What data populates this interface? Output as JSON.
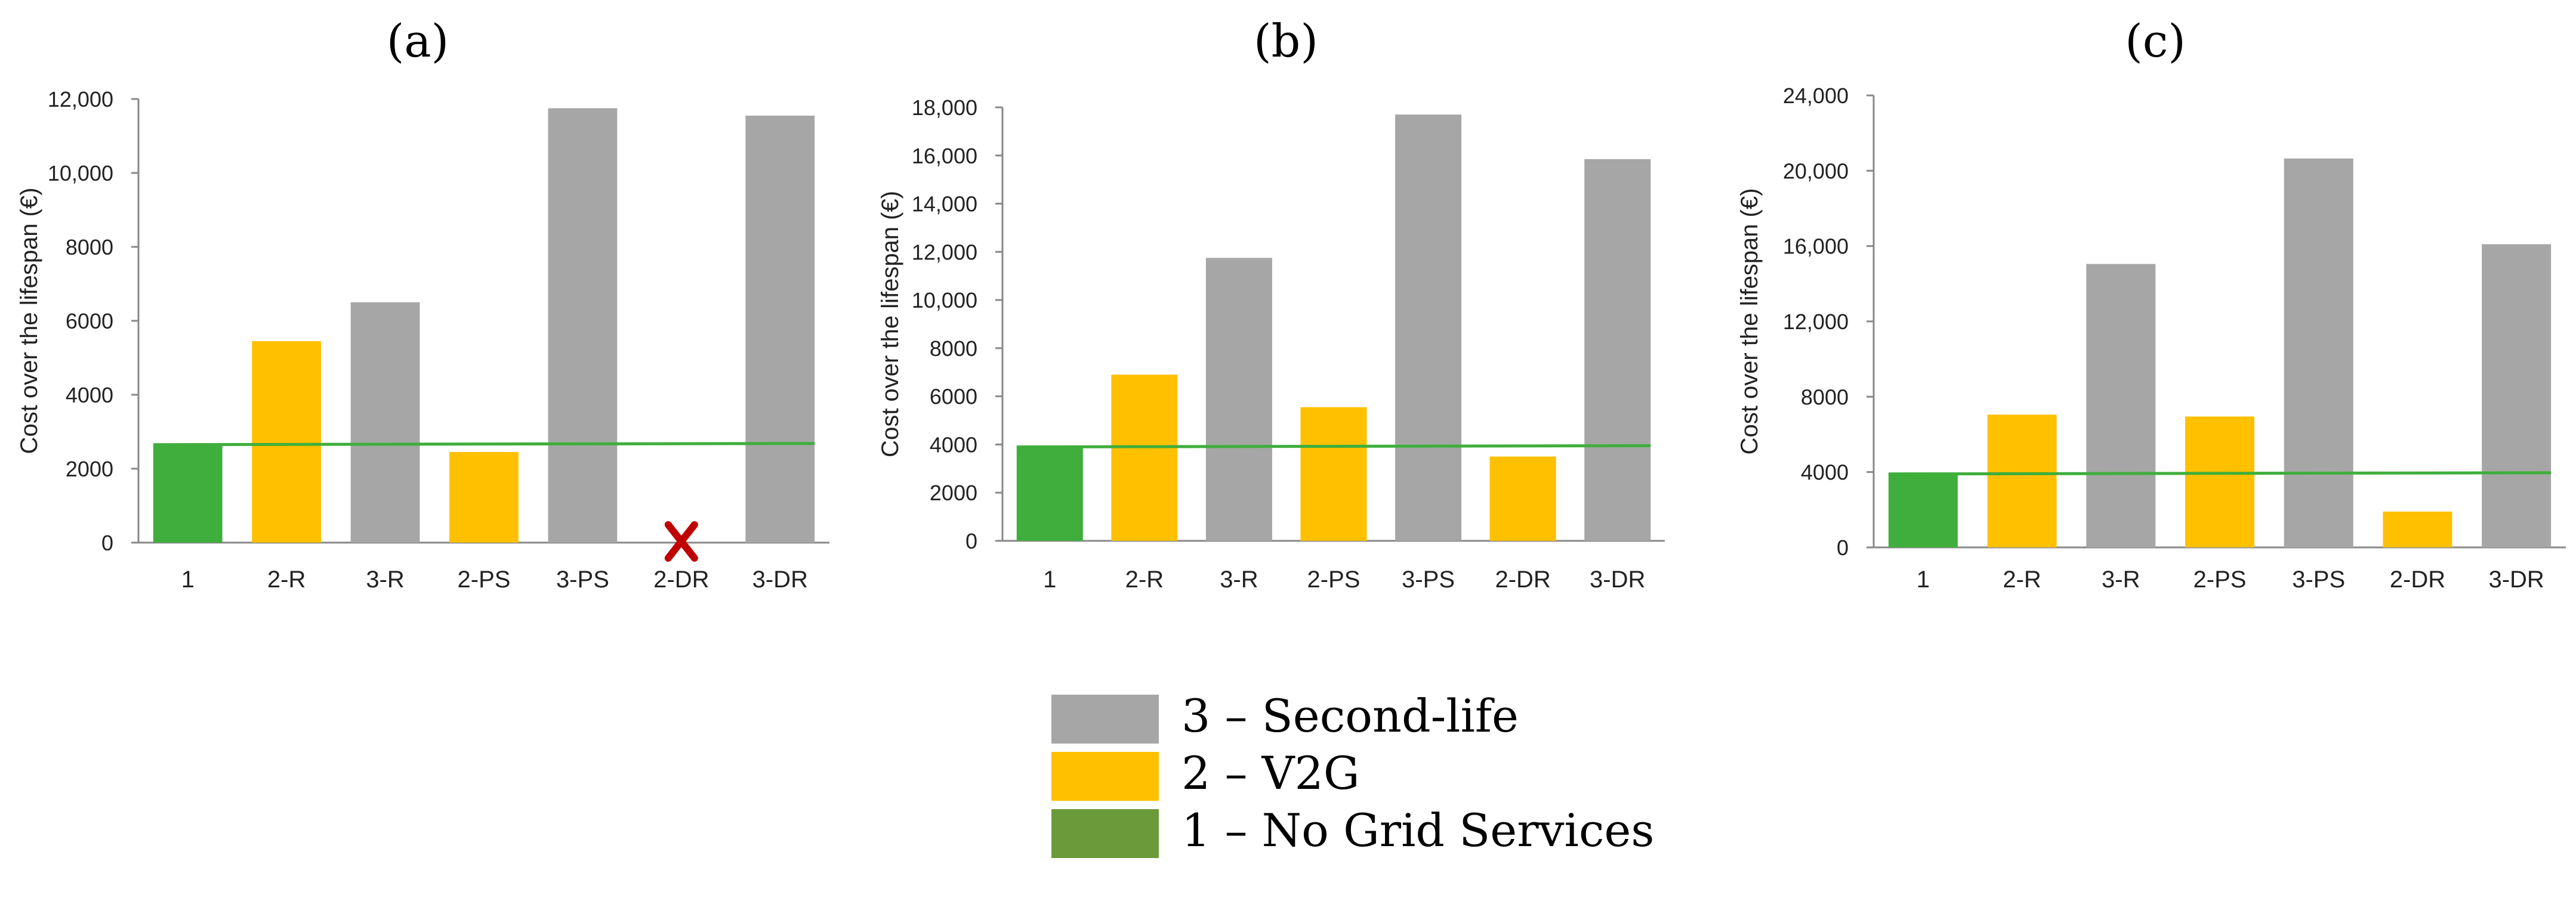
{
  "colors": {
    "second_life": "#a6a6a6",
    "v2g": "#ffc000",
    "no_grid": "#3fae3c",
    "baseline_line": "#3fae3c",
    "legend_no_grid": "#6a9a3a",
    "excluded_marker": "#c00000"
  },
  "legend": [
    {
      "label": "3 – Second-life",
      "color_key": "second_life"
    },
    {
      "label": "2 – V2G",
      "color_key": "v2g"
    },
    {
      "label": "1 – No Grid Services",
      "color_key": "legend_no_grid"
    }
  ],
  "chart_data": [
    {
      "type": "bar",
      "title": "(a)",
      "ylabel": "Cost over the lifespan (€)",
      "xlabel": "",
      "ylim": [
        0,
        12000
      ],
      "yticks": [
        0,
        2000,
        4000,
        6000,
        8000,
        10000,
        12000
      ],
      "ytick_labels": [
        "0",
        "2000",
        "4000",
        "6000",
        "8000",
        "10,000",
        "12,000"
      ],
      "categories": [
        "1",
        "2-R",
        "3-R",
        "2-PS",
        "3-PS",
        "2-DR",
        "3-DR"
      ],
      "values": [
        2650,
        5450,
        6500,
        2450,
        11750,
        null,
        11550
      ],
      "groups": [
        "no_grid",
        "v2g",
        "second_life",
        "v2g",
        "second_life",
        "v2g",
        "second_life"
      ],
      "baseline": 2650,
      "excluded_marker": {
        "category": "2-DR",
        "symbol": "✗"
      }
    },
    {
      "type": "bar",
      "title": "(b)",
      "ylabel": "Cost over the lifespan (€)",
      "xlabel": "",
      "ylim": [
        0,
        18000
      ],
      "yticks": [
        0,
        2000,
        4000,
        6000,
        8000,
        10000,
        12000,
        14000,
        16000,
        18000
      ],
      "ytick_labels": [
        "0",
        "2000",
        "4000",
        "6000",
        "8000",
        "10,000",
        "12,000",
        "14,000",
        "16,000",
        "18,000"
      ],
      "categories": [
        "1",
        "2-R",
        "3-R",
        "2-PS",
        "3-PS",
        "2-DR",
        "3-DR"
      ],
      "values": [
        3900,
        6900,
        11750,
        5550,
        17700,
        3500,
        15850
      ],
      "groups": [
        "no_grid",
        "v2g",
        "second_life",
        "v2g",
        "second_life",
        "v2g",
        "second_life"
      ],
      "baseline": 3900
    },
    {
      "type": "bar",
      "title": "(c)",
      "ylabel": "Cost over the lifespan (€)",
      "xlabel": "",
      "ylim": [
        0,
        24000
      ],
      "yticks": [
        0,
        4000,
        8000,
        12000,
        16000,
        20000,
        24000
      ],
      "ytick_labels": [
        "0",
        "4000",
        "8000",
        "12,000",
        "16,000",
        "20,000",
        "24,000"
      ],
      "categories": [
        "1",
        "2-R",
        "3-R",
        "2-PS",
        "3-PS",
        "2-DR",
        "3-DR"
      ],
      "values": [
        3900,
        7050,
        15050,
        6950,
        20650,
        1900,
        16100
      ],
      "groups": [
        "no_grid",
        "v2g",
        "second_life",
        "v2g",
        "second_life",
        "v2g",
        "second_life"
      ],
      "baseline": 3900
    }
  ]
}
